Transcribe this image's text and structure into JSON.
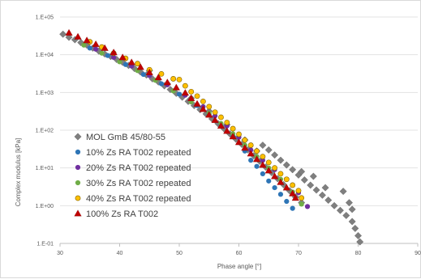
{
  "chart_data": {
    "type": "scatter",
    "title": "",
    "xlabel": "Phase angle [°]",
    "ylabel": "Complex modulus [kPa]",
    "xlim": [
      30,
      90
    ],
    "ylim": [
      0.1,
      100000
    ],
    "yscale": "log",
    "x_ticks": [
      "30",
      "40",
      "50",
      "60",
      "70",
      "80",
      "90"
    ],
    "y_ticks": [
      "1.E-01",
      "1.E+00",
      "1.E+01",
      "1.E+02",
      "1.E+03",
      "1.E+04",
      "1.E+05"
    ],
    "grid": "horizontal",
    "legend_position": "lower-left",
    "series": [
      {
        "name": "MOL GmB 45/80-55",
        "marker": "diamond",
        "color": "#7f7f7f",
        "points": [
          [
            30.5,
            35000
          ],
          [
            31.5,
            29000
          ],
          [
            32.5,
            25000
          ],
          [
            33.5,
            21000
          ],
          [
            34.5,
            18000
          ],
          [
            35.5,
            15000
          ],
          [
            36.5,
            12500
          ],
          [
            37.5,
            10500
          ],
          [
            38.5,
            9000
          ],
          [
            39.5,
            7500
          ],
          [
            40.5,
            6300
          ],
          [
            41.5,
            5200
          ],
          [
            42.5,
            4300
          ],
          [
            43.5,
            3500
          ],
          [
            44.5,
            2900
          ],
          [
            45.5,
            2300
          ],
          [
            46.5,
            1900
          ],
          [
            47.5,
            1500
          ],
          [
            48.5,
            1200
          ],
          [
            49.5,
            950
          ],
          [
            50.5,
            750
          ],
          [
            51.5,
            580
          ],
          [
            52.5,
            450
          ],
          [
            53.5,
            350
          ],
          [
            54.5,
            270
          ],
          [
            55.5,
            200
          ],
          [
            56.5,
            150
          ],
          [
            57.5,
            110
          ],
          [
            58.5,
            80
          ],
          [
            59.5,
            58
          ],
          [
            60.5,
            42
          ],
          [
            61.5,
            30
          ],
          [
            62.5,
            21
          ],
          [
            63.5,
            15
          ],
          [
            64.5,
            10.5
          ],
          [
            65.5,
            7.5
          ],
          [
            66.5,
            5.2
          ],
          [
            67.5,
            3.6
          ],
          [
            68.5,
            2.5
          ],
          [
            69.5,
            1.7
          ],
          [
            70.5,
            1.2
          ],
          [
            64,
            40
          ],
          [
            65,
            30
          ],
          [
            66,
            22
          ],
          [
            67,
            16
          ],
          [
            68,
            12
          ],
          [
            69,
            9
          ],
          [
            70,
            6.5
          ],
          [
            71,
            4.8
          ],
          [
            72,
            3.5
          ],
          [
            73,
            2.6
          ],
          [
            74,
            1.9
          ],
          [
            75,
            1.4
          ],
          [
            76,
            1.0
          ],
          [
            77,
            0.75
          ],
          [
            78,
            0.55
          ],
          [
            79,
            0.38
          ],
          [
            79.5,
            0.25
          ],
          [
            80,
            0.16
          ],
          [
            80.3,
            0.11
          ],
          [
            77.5,
            2.4
          ],
          [
            78.5,
            1.2
          ],
          [
            79,
            0.8
          ],
          [
            45,
            3800
          ],
          [
            48,
            1700
          ],
          [
            52,
            700
          ],
          [
            55,
            320
          ],
          [
            58,
            140
          ],
          [
            61,
            55
          ],
          [
            63,
            28
          ],
          [
            70.5,
            8
          ],
          [
            72.5,
            6
          ],
          [
            74.5,
            3
          ]
        ]
      },
      {
        "name": "10% Zs RA T002 repeated",
        "marker": "circle",
        "color": "#2e75b6",
        "points": [
          [
            35,
            15000
          ],
          [
            38,
            9500
          ],
          [
            41,
            5500
          ],
          [
            44,
            3000
          ],
          [
            47,
            1700
          ],
          [
            50,
            900
          ],
          [
            53,
            450
          ],
          [
            55,
            260
          ],
          [
            57,
            140
          ],
          [
            59,
            70
          ],
          [
            61,
            28
          ],
          [
            62,
            16
          ],
          [
            63,
            11
          ],
          [
            64,
            7
          ],
          [
            65,
            4.5
          ],
          [
            66,
            3
          ],
          [
            67,
            2
          ],
          [
            68,
            1.3
          ],
          [
            69,
            0.85
          ]
        ]
      },
      {
        "name": "20% Zs RA T002 repeated",
        "marker": "circle",
        "color": "#7030a0",
        "points": [
          [
            36,
            14000
          ],
          [
            39,
            8500
          ],
          [
            42,
            5000
          ],
          [
            45,
            2800
          ],
          [
            48,
            1600
          ],
          [
            51,
            850
          ],
          [
            54,
            420
          ],
          [
            56,
            240
          ],
          [
            58,
            130
          ],
          [
            60,
            65
          ],
          [
            62,
            30
          ],
          [
            64,
            16
          ],
          [
            66,
            9
          ],
          [
            68,
            5
          ],
          [
            70,
            2.2
          ],
          [
            71.5,
            0.95
          ]
        ]
      },
      {
        "name": "30% Zs RA T002 repeated",
        "marker": "circle",
        "color": "#70ad47",
        "points": [
          [
            34,
            18000
          ],
          [
            37,
            11000
          ],
          [
            40,
            6500
          ],
          [
            43,
            3800
          ],
          [
            46,
            2100
          ],
          [
            49,
            1100
          ],
          [
            52,
            560
          ],
          [
            55,
            280
          ],
          [
            57,
            150
          ],
          [
            59,
            80
          ],
          [
            61,
            40
          ],
          [
            63,
            20
          ],
          [
            65,
            10
          ],
          [
            67,
            5
          ],
          [
            69,
            2.3
          ],
          [
            70.5,
            1.1
          ]
        ]
      },
      {
        "name": "40% Zs RA T002 repeated",
        "marker": "circle",
        "color": "#ffc000",
        "points": [
          [
            35,
            22000
          ],
          [
            37,
            16000
          ],
          [
            39,
            11000
          ],
          [
            41,
            8000
          ],
          [
            43,
            5800
          ],
          [
            45,
            4000
          ],
          [
            47,
            3100
          ],
          [
            49,
            2300
          ],
          [
            50,
            2200
          ],
          [
            51,
            1500
          ],
          [
            52,
            1050
          ],
          [
            53,
            800
          ],
          [
            54,
            580
          ],
          [
            55,
            420
          ],
          [
            56,
            300
          ],
          [
            57,
            220
          ],
          [
            58,
            160
          ],
          [
            59,
            110
          ],
          [
            60,
            78
          ],
          [
            61,
            55
          ],
          [
            62,
            40
          ],
          [
            63,
            28
          ],
          [
            64,
            20
          ],
          [
            65,
            14
          ],
          [
            66,
            10
          ],
          [
            67,
            7
          ],
          [
            68,
            5
          ],
          [
            69,
            3.5
          ],
          [
            70,
            2.5
          ],
          [
            70.5,
            1.6
          ]
        ]
      },
      {
        "name": "100% Zs RA T002",
        "marker": "triangle",
        "color": "#c00000",
        "points": [
          [
            31.5,
            38000
          ],
          [
            33,
            30000
          ],
          [
            34.5,
            24000
          ],
          [
            36,
            19000
          ],
          [
            37.5,
            15000
          ],
          [
            39,
            11500
          ],
          [
            40.5,
            8500
          ],
          [
            42,
            6300
          ],
          [
            43.5,
            4700
          ],
          [
            45,
            3400
          ],
          [
            46.5,
            2500
          ],
          [
            48,
            1850
          ],
          [
            49.5,
            1350
          ],
          [
            51,
            980
          ],
          [
            52,
            700
          ],
          [
            53,
            500
          ],
          [
            54,
            360
          ],
          [
            55,
            255
          ],
          [
            56,
            185
          ],
          [
            57,
            130
          ],
          [
            58,
            95
          ],
          [
            59,
            68
          ],
          [
            60,
            48
          ],
          [
            61,
            34
          ],
          [
            62,
            24
          ],
          [
            63,
            17
          ],
          [
            64,
            12
          ],
          [
            65,
            8.5
          ],
          [
            66,
            6
          ],
          [
            67,
            4.2
          ],
          [
            68,
            3
          ],
          [
            69,
            2.1
          ],
          [
            69.5,
            1.6
          ]
        ]
      }
    ]
  }
}
